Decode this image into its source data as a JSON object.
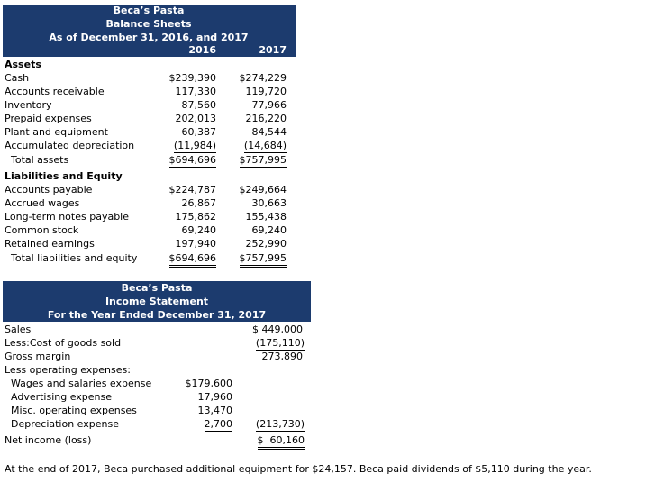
{
  "balance_sheet": {
    "company": "Beca’s Pasta",
    "title": "Balance Sheets",
    "date": "As of December 31, 2016, and 2017",
    "columns": [
      "2016",
      "2017"
    ],
    "assets": {
      "heading": "Assets",
      "rows": [
        {
          "label": "Cash",
          "values": [
            "$239,390",
            "$274,229"
          ]
        },
        {
          "label": "Accounts receivable",
          "values": [
            "117,330",
            "119,720"
          ]
        },
        {
          "label": "Inventory",
          "values": [
            "87,560",
            "77,966"
          ]
        },
        {
          "label": "Prepaid expenses",
          "values": [
            "202,013",
            "216,220"
          ]
        },
        {
          "label": "Plant and equipment",
          "values": [
            "60,387",
            "84,544"
          ]
        },
        {
          "label": "Accumulated depreciation",
          "values": [
            "(11,984)",
            "(14,684)"
          ]
        }
      ],
      "total": {
        "label": "Total assets",
        "values": [
          "$694,696",
          "$757,995"
        ]
      }
    },
    "liabilities": {
      "heading": "Liabilities and Equity",
      "rows": [
        {
          "label": "Accounts payable",
          "values": [
            "$224,787",
            "$249,664"
          ]
        },
        {
          "label": "Accrued wages",
          "values": [
            "26,867",
            "30,663"
          ]
        },
        {
          "label": "Long-term notes payable",
          "values": [
            "175,862",
            "155,438"
          ]
        },
        {
          "label": "Common stock",
          "values": [
            "69,240",
            "69,240"
          ]
        },
        {
          "label": "Retained earnings",
          "values": [
            "197,940",
            "252,990"
          ]
        }
      ],
      "total": {
        "label": "Total liabilities and equity",
        "values": [
          "$694,696",
          "$757,995"
        ]
      }
    }
  },
  "income_statement": {
    "company": "Beca’s Pasta",
    "title": "Income Statement",
    "date": "For the Year Ended December 31, 2017",
    "sales": {
      "label": "Sales",
      "value": "$ 449,000"
    },
    "cogs": {
      "label": "Less:Cost of goods sold",
      "value": "(175,110)"
    },
    "gross": {
      "label": "Gross margin",
      "value": "273,890"
    },
    "operating": {
      "heading": "Less operating expenses:",
      "items": [
        {
          "label": "Wages and salaries expense",
          "value": "$179,600"
        },
        {
          "label": "Advertising expense",
          "value": "17,960"
        },
        {
          "label": "Misc. operating expenses",
          "value": "13,470"
        },
        {
          "label": "Depreciation expense",
          "value": "2,700"
        }
      ],
      "total": "(213,730)"
    },
    "net": {
      "label": "Net income (loss)",
      "value": "$  60,160"
    }
  },
  "note": "At the end of 2017, Beca purchased additional equipment for $24,157. Beca paid dividends of $5,110 during the year."
}
